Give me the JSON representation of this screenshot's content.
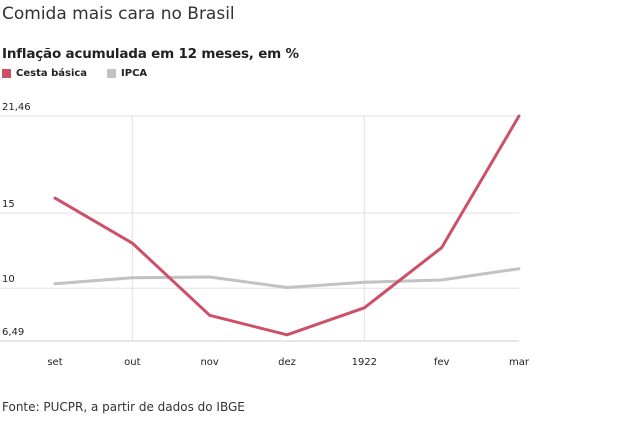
{
  "title": "Comida mais cara no Brasil",
  "subtitle": "Inflação acumulada em 12 meses, em %",
  "source": "Fonte: PUCPR, a partir de dados do IBGE",
  "colors": {
    "cesta": "#cc5168",
    "ipca": "#c2c2c2",
    "grid": "#e0e0e0",
    "axis": "#cccccc"
  },
  "chart_data": {
    "type": "line",
    "categories": [
      "set",
      "out",
      "nov",
      "dez",
      "1922",
      "fev",
      "mar"
    ],
    "series": [
      {
        "name": "Cesta básica",
        "color": "#cc5168",
        "values": [
          16.0,
          13.0,
          8.2,
          6.9,
          8.7,
          12.7,
          21.46
        ]
      },
      {
        "name": "IPCA",
        "color": "#c2c2c2",
        "values": [
          10.3,
          10.7,
          10.75,
          10.05,
          10.4,
          10.55,
          11.3
        ]
      }
    ],
    "yticks": [
      {
        "value": 21.46,
        "label": "21,46"
      },
      {
        "value": 15,
        "label": "15"
      },
      {
        "value": 10,
        "label": "10"
      },
      {
        "value": 6.49,
        "label": "6,49"
      }
    ],
    "ylim": [
      6.49,
      21.46
    ],
    "xlabel": "",
    "ylabel": "",
    "grid": true,
    "legend": "top-left"
  }
}
